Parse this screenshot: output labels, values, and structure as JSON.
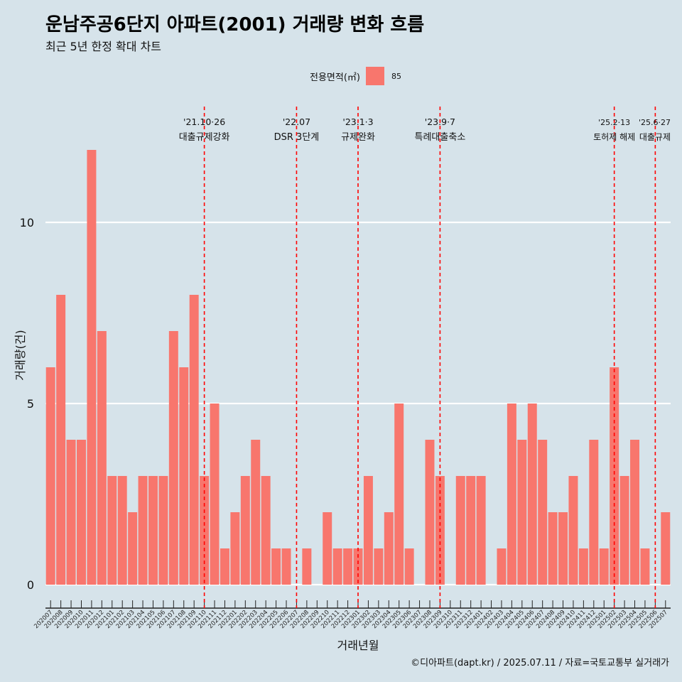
{
  "chart_data": {
    "type": "bar",
    "title": "운남주공6단지 아파트(2001) 거래량 변화 흐름",
    "subtitle": "최근 5년 한정 확대 차트",
    "xlabel": "거래년월",
    "ylabel": "거래량(건)",
    "ylim": [
      0,
      12
    ],
    "yticks": [
      "0",
      "5",
      "10"
    ],
    "grid": true,
    "legend": {
      "title": "전용면적(㎡)",
      "placement": "top-center",
      "color": "#f8766d",
      "entries": [
        "85"
      ]
    },
    "bar_color": "#f8766d",
    "categories": [
      "202007",
      "202008",
      "202009",
      "202010",
      "202011",
      "202012",
      "202101",
      "202102",
      "202103",
      "202104",
      "202105",
      "202106",
      "202107",
      "202108",
      "202109",
      "202110",
      "202111",
      "202112",
      "202201",
      "202202",
      "202203",
      "202204",
      "202205",
      "202206",
      "202207",
      "202208",
      "202209",
      "202210",
      "202211",
      "202212",
      "202301",
      "202302",
      "202303",
      "202304",
      "202305",
      "202306",
      "202307",
      "202308",
      "202309",
      "202310",
      "202311",
      "202312",
      "202401",
      "202402",
      "202403",
      "202404",
      "202405",
      "202406",
      "202407",
      "202408",
      "202409",
      "202410",
      "202411",
      "202412",
      "202501",
      "202502",
      "202503",
      "202504",
      "202505",
      "202506",
      "202507"
    ],
    "series": [
      {
        "name": "85",
        "values": [
          6,
          8,
          4,
          4,
          12,
          7,
          3,
          3,
          2,
          3,
          3,
          3,
          7,
          6,
          8,
          3,
          5,
          1,
          2,
          3,
          4,
          3,
          1,
          1,
          0,
          1,
          0,
          2,
          1,
          1,
          1,
          3,
          1,
          2,
          5,
          1,
          0,
          4,
          3,
          0,
          3,
          3,
          3,
          0,
          1,
          5,
          4,
          5,
          4,
          2,
          2,
          3,
          1,
          4,
          1,
          6,
          3,
          4,
          1,
          0,
          2
        ]
      }
    ],
    "annotations": [
      {
        "category": "202110",
        "date": "'21.10·26",
        "label": "대출규제강화"
      },
      {
        "category": "202207",
        "date": "'22.07",
        "label": "DSR 3단계"
      },
      {
        "category": "202301",
        "date": "'23.1·3",
        "label": "규제완화"
      },
      {
        "category": "202309",
        "date": "'23.9·7",
        "label": "특례대출축소"
      },
      {
        "category": "202502",
        "date": "'25.2·13",
        "label": "토허제 해제"
      },
      {
        "category": "202506",
        "date": "'25.6·27",
        "label": "대출규제"
      }
    ],
    "annotation_color": "#ff0000"
  },
  "caption": "©디아파트(dapt.kr) / 2025.07.11 / 자료=국토교통부 실거래가"
}
